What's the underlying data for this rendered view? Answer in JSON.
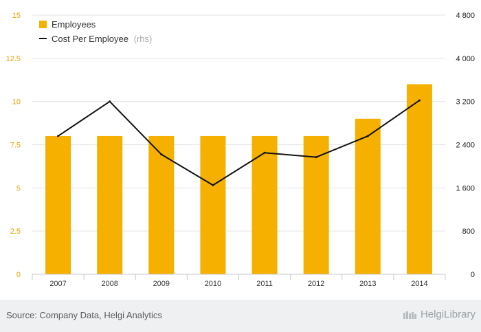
{
  "footer": {
    "source": "Source: Company Data, Helgi Analytics",
    "brand": "HelgiLibrary"
  },
  "colors": {
    "bar": "#f5b000",
    "line": "#111111",
    "left_axis_text": "#e7a400",
    "grid": "#e3e3e3"
  },
  "chart_data": {
    "type": "bar",
    "categories": [
      "2007",
      "2008",
      "2009",
      "2010",
      "2011",
      "2012",
      "2013",
      "2014"
    ],
    "series": [
      {
        "name": "Employees",
        "type": "bar",
        "axis": "left",
        "values": [
          8,
          8,
          8,
          8,
          8,
          8,
          9,
          11
        ]
      },
      {
        "name": "Cost Per Employee",
        "legend_suffix": "(rhs)",
        "type": "line",
        "axis": "right",
        "values": [
          2560,
          3200,
          2220,
          1650,
          2250,
          2170,
          2560,
          3220
        ]
      }
    ],
    "y_left": {
      "range": [
        0,
        15
      ],
      "ticks": [
        "0",
        "2.5",
        "5",
        "7.5",
        "10",
        "12.5",
        "15"
      ]
    },
    "y_right": {
      "range": [
        0,
        4800
      ],
      "ticks": [
        "0",
        "800",
        "1 600",
        "2 400",
        "3 200",
        "4 000",
        "4 800"
      ]
    },
    "grid": true,
    "legend_position": "top-left"
  }
}
